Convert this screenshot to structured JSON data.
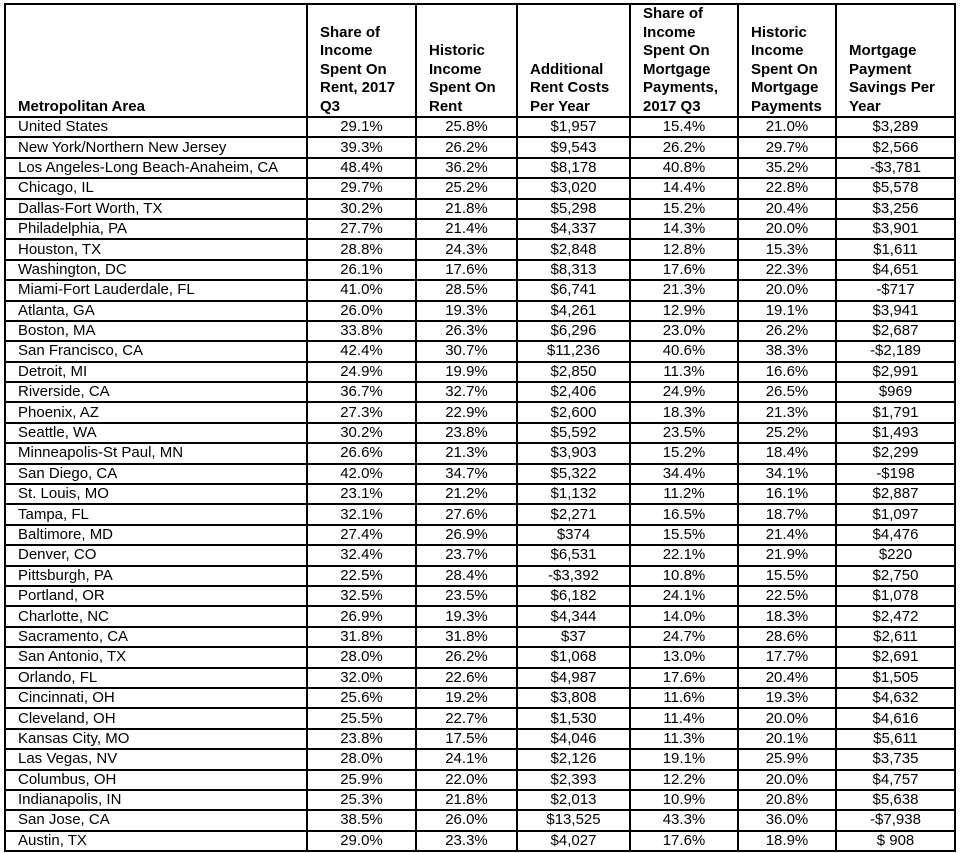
{
  "table": {
    "headers": [
      [
        "Metropolitan Area"
      ],
      [
        "Share of",
        "Income",
        "Spent On",
        "Rent, 2017",
        "Q3"
      ],
      [
        "Historic",
        "Income",
        "Spent On",
        "Rent"
      ],
      [
        "Additional",
        "Rent Costs",
        "Per Year"
      ],
      [
        "Share of",
        "Income",
        "Spent On",
        "Mortgage",
        "Payments,",
        "2017 Q3"
      ],
      [
        "Historic",
        "Income",
        "Spent On",
        "Mortgage",
        "Payments"
      ],
      [
        "Mortgage",
        "Payment",
        "Savings Per",
        "Year"
      ]
    ],
    "rows": [
      [
        "United States",
        "29.1%",
        "25.8%",
        "$1,957",
        "15.4%",
        "21.0%",
        "$3,289"
      ],
      [
        "New York/Northern New Jersey",
        "39.3%",
        "26.2%",
        "$9,543",
        "26.2%",
        "29.7%",
        "$2,566"
      ],
      [
        "Los Angeles-Long Beach-Anaheim, CA",
        "48.4%",
        "36.2%",
        "$8,178",
        "40.8%",
        "35.2%",
        "-$3,781"
      ],
      [
        "Chicago, IL",
        "29.7%",
        "25.2%",
        "$3,020",
        "14.4%",
        "22.8%",
        "$5,578"
      ],
      [
        "Dallas-Fort Worth, TX",
        "30.2%",
        "21.8%",
        "$5,298",
        "15.2%",
        "20.4%",
        "$3,256"
      ],
      [
        "Philadelphia, PA",
        "27.7%",
        "21.4%",
        "$4,337",
        "14.3%",
        "20.0%",
        "$3,901"
      ],
      [
        "Houston, TX",
        "28.8%",
        "24.3%",
        "$2,848",
        "12.8%",
        "15.3%",
        "$1,611"
      ],
      [
        "Washington, DC",
        "26.1%",
        "17.6%",
        "$8,313",
        "17.6%",
        "22.3%",
        "$4,651"
      ],
      [
        "Miami-Fort Lauderdale, FL",
        "41.0%",
        "28.5%",
        "$6,741",
        "21.3%",
        "20.0%",
        "-$717"
      ],
      [
        "Atlanta, GA",
        "26.0%",
        "19.3%",
        "$4,261",
        "12.9%",
        "19.1%",
        "$3,941"
      ],
      [
        "Boston, MA",
        "33.8%",
        "26.3%",
        "$6,296",
        "23.0%",
        "26.2%",
        "$2,687"
      ],
      [
        "San Francisco, CA",
        "42.4%",
        "30.7%",
        "$11,236",
        "40.6%",
        "38.3%",
        "-$2,189"
      ],
      [
        "Detroit, MI",
        "24.9%",
        "19.9%",
        "$2,850",
        "11.3%",
        "16.6%",
        "$2,991"
      ],
      [
        "Riverside, CA",
        "36.7%",
        "32.7%",
        "$2,406",
        "24.9%",
        "26.5%",
        "$969"
      ],
      [
        "Phoenix, AZ",
        "27.3%",
        "22.9%",
        "$2,600",
        "18.3%",
        "21.3%",
        "$1,791"
      ],
      [
        "Seattle, WA",
        "30.2%",
        "23.8%",
        "$5,592",
        "23.5%",
        "25.2%",
        "$1,493"
      ],
      [
        "Minneapolis-St Paul, MN",
        "26.6%",
        "21.3%",
        "$3,903",
        "15.2%",
        "18.4%",
        "$2,299"
      ],
      [
        "San Diego, CA",
        "42.0%",
        "34.7%",
        "$5,322",
        "34.4%",
        "34.1%",
        "-$198"
      ],
      [
        "St. Louis, MO",
        "23.1%",
        "21.2%",
        "$1,132",
        "11.2%",
        "16.1%",
        "$2,887"
      ],
      [
        "Tampa, FL",
        "32.1%",
        "27.6%",
        "$2,271",
        "16.5%",
        "18.7%",
        "$1,097"
      ],
      [
        "Baltimore, MD",
        "27.4%",
        "26.9%",
        "$374",
        "15.5%",
        "21.4%",
        "$4,476"
      ],
      [
        "Denver, CO",
        "32.4%",
        "23.7%",
        "$6,531",
        "22.1%",
        "21.9%",
        "$220"
      ],
      [
        "Pittsburgh, PA",
        "22.5%",
        "28.4%",
        "-$3,392",
        "10.8%",
        "15.5%",
        "$2,750"
      ],
      [
        "Portland, OR",
        "32.5%",
        "23.5%",
        "$6,182",
        "24.1%",
        "22.5%",
        "$1,078"
      ],
      [
        "Charlotte, NC",
        "26.9%",
        "19.3%",
        "$4,344",
        "14.0%",
        "18.3%",
        "$2,472"
      ],
      [
        "Sacramento, CA",
        "31.8%",
        "31.8%",
        "$37",
        "24.7%",
        "28.6%",
        "$2,611"
      ],
      [
        "San Antonio, TX",
        "28.0%",
        "26.2%",
        "$1,068",
        "13.0%",
        "17.7%",
        "$2,691"
      ],
      [
        "Orlando, FL",
        "32.0%",
        "22.6%",
        "$4,987",
        "17.6%",
        "20.4%",
        "$1,505"
      ],
      [
        "Cincinnati, OH",
        "25.6%",
        "19.2%",
        "$3,808",
        "11.6%",
        "19.3%",
        "$4,632"
      ],
      [
        "Cleveland, OH",
        "25.5%",
        "22.7%",
        "$1,530",
        "11.4%",
        "20.0%",
        "$4,616"
      ],
      [
        "Kansas City, MO",
        "23.8%",
        "17.5%",
        "$4,046",
        "11.3%",
        "20.1%",
        "$5,611"
      ],
      [
        "Las Vegas, NV",
        "28.0%",
        "24.1%",
        "$2,126",
        "19.1%",
        "25.9%",
        "$3,735"
      ],
      [
        "Columbus, OH",
        "25.9%",
        "22.0%",
        "$2,393",
        "12.2%",
        "20.0%",
        "$4,757"
      ],
      [
        "Indianapolis, IN",
        "25.3%",
        "21.8%",
        "$2,013",
        "10.9%",
        "20.8%",
        "$5,638"
      ],
      [
        "San Jose, CA",
        "38.5%",
        "26.0%",
        "$13,525",
        "43.3%",
        "36.0%",
        "-$7,938"
      ],
      [
        "Austin, TX",
        "29.0%",
        "23.3%",
        "$4,027",
        "17.6%",
        "18.9%",
        "$ 908"
      ]
    ]
  }
}
